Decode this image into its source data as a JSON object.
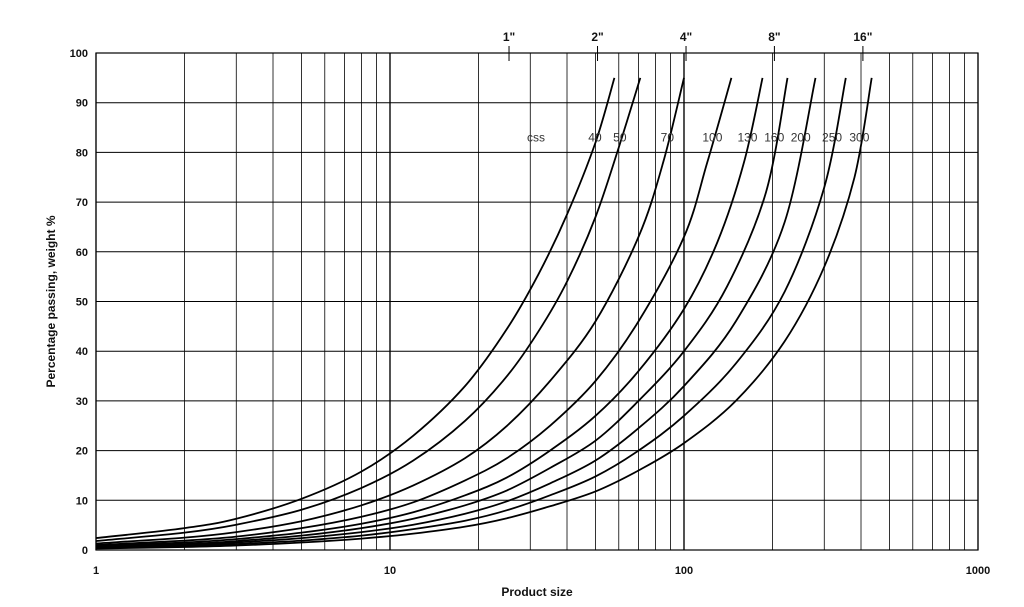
{
  "chart_data": {
    "type": "line",
    "xlabel": "Product size",
    "ylabel": "Percentage passing, weight  %",
    "xscale": "log",
    "xlim": [
      1,
      1000
    ],
    "ylim": [
      0,
      100
    ],
    "x_ticks": [
      "1",
      "10",
      "100",
      "1000"
    ],
    "y_ticks": [
      "0",
      "10",
      "20",
      "30",
      "40",
      "50",
      "60",
      "70",
      "80",
      "90",
      "100"
    ],
    "grid": true,
    "top_markers": [
      {
        "label": "1\"",
        "x": 25.4
      },
      {
        "label": "2\"",
        "x": 50.8
      },
      {
        "label": "4\"",
        "x": 101.6
      },
      {
        "label": "8\"",
        "x": 203
      },
      {
        "label": "16\"",
        "x": 406
      }
    ],
    "css_label": "css",
    "series": [
      {
        "name": "40",
        "x": [
          1,
          2,
          3,
          5,
          8,
          12,
          18,
          25,
          32,
          40,
          50,
          58
        ],
        "y": [
          2.4,
          4.4,
          6.3,
          10.3,
          15.8,
          23,
          33,
          44.5,
          55.5,
          67.5,
          82,
          95
        ]
      },
      {
        "name": "50",
        "x": [
          1,
          2,
          3,
          5,
          8,
          12,
          18,
          25,
          32,
          40,
          50,
          60,
          71
        ],
        "y": [
          1.8,
          3.5,
          5.1,
          8.1,
          12.5,
          18,
          26,
          35,
          44,
          54,
          67,
          81,
          95
        ]
      },
      {
        "name": "70",
        "x": [
          1,
          2,
          3,
          5,
          8,
          12,
          18,
          25,
          35,
          50,
          70,
          85,
          100
        ],
        "y": [
          1.3,
          2.5,
          3.6,
          5.8,
          9,
          13,
          18.5,
          25,
          34,
          46,
          63,
          78,
          95
        ]
      },
      {
        "name": "100",
        "x": [
          1,
          2,
          3,
          5,
          8,
          12,
          18,
          25,
          35,
          50,
          70,
          100,
          120,
          145
        ],
        "y": [
          1,
          1.9,
          2.7,
          4.4,
          6.7,
          9.6,
          14,
          18.5,
          25,
          34,
          46,
          63,
          78,
          95
        ]
      },
      {
        "name": "130",
        "x": [
          1,
          2,
          3,
          5,
          8,
          12,
          18,
          25,
          35,
          50,
          70,
          100,
          130,
          160,
          185
        ],
        "y": [
          0.8,
          1.5,
          2.2,
          3.5,
          5.3,
          7.6,
          11,
          14.6,
          20,
          27,
          36,
          48.5,
          62,
          78,
          95
        ]
      },
      {
        "name": "160",
        "x": [
          1,
          2,
          3,
          5,
          8,
          12,
          18,
          25,
          35,
          50,
          70,
          100,
          140,
          190,
          225
        ],
        "y": [
          0.6,
          1.2,
          1.8,
          2.9,
          4.4,
          6.3,
          9,
          12,
          16.5,
          22,
          30,
          40,
          53,
          72,
          95
        ]
      },
      {
        "name": "200",
        "x": [
          1,
          2,
          3,
          5,
          8,
          12,
          18,
          25,
          35,
          50,
          70,
          100,
          150,
          220,
          280
        ],
        "y": [
          0.5,
          1,
          1.5,
          2.4,
          3.6,
          5.1,
          7.3,
          9.8,
          13.4,
          18,
          24.5,
          33,
          46,
          66,
          95
        ]
      },
      {
        "name": "250",
        "x": [
          1,
          2,
          3,
          5,
          8,
          12,
          18,
          25,
          35,
          50,
          70,
          100,
          150,
          220,
          300,
          355
        ],
        "y": [
          0.4,
          0.8,
          1.2,
          1.9,
          2.9,
          4.2,
          5.9,
          8,
          11,
          14.8,
          20,
          27,
          37.5,
          52,
          73,
          95
        ]
      },
      {
        "name": "300",
        "x": [
          1,
          2,
          3,
          5,
          8,
          12,
          18,
          25,
          35,
          50,
          70,
          100,
          150,
          220,
          300,
          380,
          435
        ],
        "y": [
          0.3,
          0.6,
          0.9,
          1.5,
          2.3,
          3.3,
          4.7,
          6.4,
          8.8,
          11.8,
          16,
          21.5,
          30,
          42,
          57,
          75,
          95
        ]
      }
    ]
  }
}
